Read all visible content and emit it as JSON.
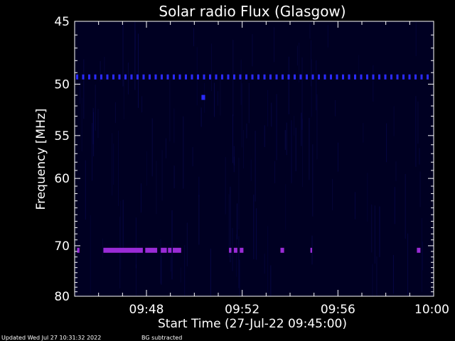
{
  "chart_data": {
    "type": "heatmap",
    "title": "Solar radio Flux (Glasgow)",
    "xlabel": "Start Time (27-Jul-22 09:45:00)",
    "ylabel": "Frequency [MHz]",
    "x_range_minutes": [
      0,
      15
    ],
    "y_range_mhz": [
      45,
      80
    ],
    "y_ticks": [
      45,
      50,
      55,
      60,
      70,
      80
    ],
    "y_tick_labels": [
      "45",
      "50",
      "55",
      "60",
      "70",
      "80"
    ],
    "x_ticks_minutes": [
      3,
      7,
      11,
      15
    ],
    "x_tick_labels": [
      "09:48",
      "09:52",
      "09:56",
      "10:00"
    ],
    "background_color": "#000022",
    "features": [
      {
        "name": "band",
        "freq_mhz": 49.4,
        "start_min": 0,
        "end_min": 15,
        "style": "dashed",
        "color": "#2a2aff"
      },
      {
        "name": "band",
        "freq_mhz": 70.8,
        "start_min": 0.1,
        "end_min": 0.2,
        "style": "solid",
        "color": "#9a2bd6"
      },
      {
        "name": "band",
        "freq_mhz": 70.8,
        "start_min": 1.2,
        "end_min": 2.85,
        "style": "solid",
        "color": "#9a2bd6"
      },
      {
        "name": "band",
        "freq_mhz": 70.8,
        "start_min": 2.95,
        "end_min": 3.45,
        "style": "solid",
        "color": "#9a2bd6"
      },
      {
        "name": "band",
        "freq_mhz": 70.8,
        "start_min": 3.6,
        "end_min": 3.85,
        "style": "solid",
        "color": "#9a2bd6"
      },
      {
        "name": "band",
        "freq_mhz": 70.8,
        "start_min": 3.9,
        "end_min": 4.05,
        "style": "solid",
        "color": "#9a2bd6"
      },
      {
        "name": "band",
        "freq_mhz": 70.8,
        "start_min": 4.1,
        "end_min": 4.45,
        "style": "solid",
        "color": "#9a2bd6"
      },
      {
        "name": "band",
        "freq_mhz": 70.8,
        "start_min": 6.45,
        "end_min": 6.55,
        "style": "solid",
        "color": "#9a2bd6"
      },
      {
        "name": "band",
        "freq_mhz": 70.8,
        "start_min": 6.65,
        "end_min": 6.8,
        "style": "solid",
        "color": "#9a2bd6"
      },
      {
        "name": "band",
        "freq_mhz": 70.8,
        "start_min": 6.9,
        "end_min": 7.05,
        "style": "solid",
        "color": "#9a2bd6"
      },
      {
        "name": "band",
        "freq_mhz": 70.8,
        "start_min": 8.6,
        "end_min": 8.75,
        "style": "solid",
        "color": "#9a2bd6"
      },
      {
        "name": "band",
        "freq_mhz": 70.8,
        "start_min": 9.85,
        "end_min": 9.92,
        "style": "solid",
        "color": "#9a2bd6"
      },
      {
        "name": "band",
        "freq_mhz": 70.8,
        "start_min": 14.3,
        "end_min": 14.45,
        "style": "solid",
        "color": "#9a2bd6"
      },
      {
        "name": "spot",
        "freq_mhz": 51.2,
        "start_min": 5.3,
        "end_min": 5.45,
        "style": "solid",
        "color": "#2a2aff"
      }
    ]
  },
  "footer": {
    "updated": "Updated Wed Jul 27 10:31:32 2022",
    "note": "BG subtracted"
  }
}
